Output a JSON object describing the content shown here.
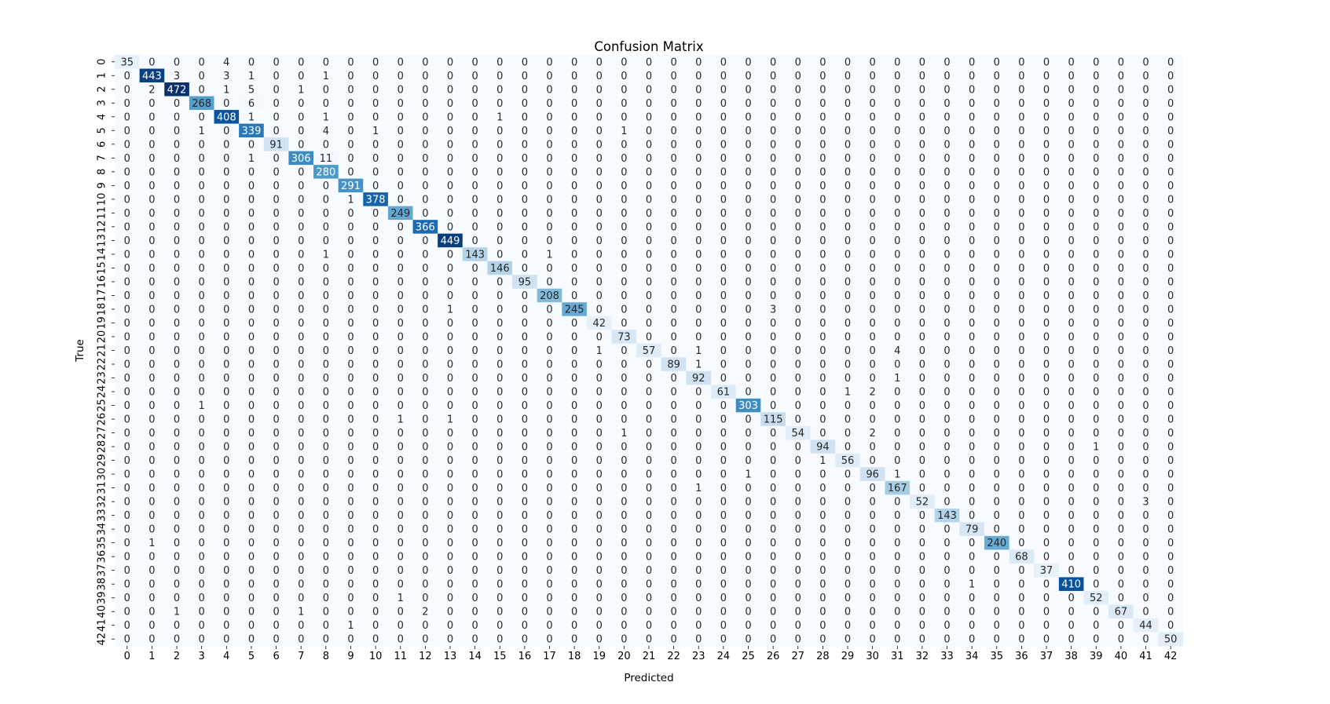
{
  "chart_data": {
    "type": "heatmap",
    "title": "Confusion Matrix",
    "xlabel": "Predicted",
    "ylabel": "True",
    "colormap": "Blues",
    "color_low": "#f7fbff",
    "color_high": "#08306b",
    "x_categories": [
      "0",
      "1",
      "2",
      "3",
      "4",
      "5",
      "6",
      "7",
      "8",
      "9",
      "10",
      "11",
      "12",
      "13",
      "14",
      "15",
      "16",
      "17",
      "18",
      "19",
      "20",
      "21",
      "22",
      "23",
      "24",
      "25",
      "26",
      "27",
      "28",
      "29",
      "30",
      "31",
      "32",
      "33",
      "34",
      "35",
      "36",
      "37",
      "38",
      "39",
      "40",
      "41",
      "42"
    ],
    "y_categories": [
      "0",
      "1",
      "2",
      "3",
      "4",
      "5",
      "6",
      "7",
      "8",
      "9",
      "10",
      "11",
      "12",
      "13",
      "14",
      "15",
      "16",
      "17",
      "18",
      "19",
      "20",
      "21",
      "22",
      "23",
      "24",
      "25",
      "26",
      "27",
      "28",
      "29",
      "30",
      "31",
      "32",
      "33",
      "34",
      "35",
      "36",
      "37",
      "38",
      "39",
      "40",
      "41",
      "42"
    ],
    "cells": [
      {
        "row": 0,
        "col": 0,
        "value": 35
      },
      {
        "row": 0,
        "col": 4,
        "value": 4
      },
      {
        "row": 1,
        "col": 1,
        "value": 443
      },
      {
        "row": 1,
        "col": 2,
        "value": 3
      },
      {
        "row": 1,
        "col": 4,
        "value": 3
      },
      {
        "row": 1,
        "col": 5,
        "value": 1
      },
      {
        "row": 1,
        "col": 8,
        "value": 1
      },
      {
        "row": 2,
        "col": 1,
        "value": 2
      },
      {
        "row": 2,
        "col": 2,
        "value": 472
      },
      {
        "row": 2,
        "col": 4,
        "value": 1
      },
      {
        "row": 2,
        "col": 5,
        "value": 5
      },
      {
        "row": 2,
        "col": 7,
        "value": 1
      },
      {
        "row": 3,
        "col": 3,
        "value": 268
      },
      {
        "row": 3,
        "col": 5,
        "value": 6
      },
      {
        "row": 4,
        "col": 4,
        "value": 408
      },
      {
        "row": 4,
        "col": 5,
        "value": 1
      },
      {
        "row": 4,
        "col": 8,
        "value": 1
      },
      {
        "row": 4,
        "col": 15,
        "value": 1
      },
      {
        "row": 5,
        "col": 3,
        "value": 1
      },
      {
        "row": 5,
        "col": 5,
        "value": 339
      },
      {
        "row": 5,
        "col": 8,
        "value": 4
      },
      {
        "row": 5,
        "col": 10,
        "value": 1
      },
      {
        "row": 5,
        "col": 20,
        "value": 1
      },
      {
        "row": 6,
        "col": 6,
        "value": 91
      },
      {
        "row": 7,
        "col": 5,
        "value": 1
      },
      {
        "row": 7,
        "col": 7,
        "value": 306
      },
      {
        "row": 7,
        "col": 8,
        "value": 11
      },
      {
        "row": 8,
        "col": 8,
        "value": 280
      },
      {
        "row": 9,
        "col": 9,
        "value": 291
      },
      {
        "row": 10,
        "col": 9,
        "value": 1
      },
      {
        "row": 10,
        "col": 10,
        "value": 378
      },
      {
        "row": 11,
        "col": 11,
        "value": 249
      },
      {
        "row": 12,
        "col": 12,
        "value": 366
      },
      {
        "row": 13,
        "col": 13,
        "value": 449
      },
      {
        "row": 14,
        "col": 8,
        "value": 1
      },
      {
        "row": 14,
        "col": 14,
        "value": 143
      },
      {
        "row": 14,
        "col": 17,
        "value": 1
      },
      {
        "row": 15,
        "col": 15,
        "value": 146
      },
      {
        "row": 16,
        "col": 16,
        "value": 95
      },
      {
        "row": 17,
        "col": 17,
        "value": 208
      },
      {
        "row": 18,
        "col": 13,
        "value": 1
      },
      {
        "row": 18,
        "col": 18,
        "value": 245
      },
      {
        "row": 18,
        "col": 26,
        "value": 3
      },
      {
        "row": 19,
        "col": 19,
        "value": 42
      },
      {
        "row": 20,
        "col": 20,
        "value": 73
      },
      {
        "row": 21,
        "col": 19,
        "value": 1
      },
      {
        "row": 21,
        "col": 21,
        "value": 57
      },
      {
        "row": 21,
        "col": 23,
        "value": 1
      },
      {
        "row": 21,
        "col": 31,
        "value": 4
      },
      {
        "row": 22,
        "col": 22,
        "value": 89
      },
      {
        "row": 22,
        "col": 23,
        "value": 1
      },
      {
        "row": 23,
        "col": 23,
        "value": 92
      },
      {
        "row": 23,
        "col": 31,
        "value": 1
      },
      {
        "row": 24,
        "col": 24,
        "value": 61
      },
      {
        "row": 24,
        "col": 29,
        "value": 1
      },
      {
        "row": 24,
        "col": 30,
        "value": 2
      },
      {
        "row": 25,
        "col": 3,
        "value": 1
      },
      {
        "row": 25,
        "col": 25,
        "value": 303
      },
      {
        "row": 26,
        "col": 11,
        "value": 1
      },
      {
        "row": 26,
        "col": 13,
        "value": 1
      },
      {
        "row": 26,
        "col": 26,
        "value": 115
      },
      {
        "row": 27,
        "col": 20,
        "value": 1
      },
      {
        "row": 27,
        "col": 27,
        "value": 54
      },
      {
        "row": 27,
        "col": 30,
        "value": 2
      },
      {
        "row": 28,
        "col": 28,
        "value": 94
      },
      {
        "row": 28,
        "col": 39,
        "value": 1
      },
      {
        "row": 29,
        "col": 28,
        "value": 1
      },
      {
        "row": 29,
        "col": 29,
        "value": 56
      },
      {
        "row": 30,
        "col": 25,
        "value": 1
      },
      {
        "row": 30,
        "col": 30,
        "value": 96
      },
      {
        "row": 30,
        "col": 31,
        "value": 1
      },
      {
        "row": 31,
        "col": 23,
        "value": 1
      },
      {
        "row": 31,
        "col": 31,
        "value": 167
      },
      {
        "row": 32,
        "col": 32,
        "value": 52
      },
      {
        "row": 32,
        "col": 41,
        "value": 3
      },
      {
        "row": 33,
        "col": 33,
        "value": 143
      },
      {
        "row": 34,
        "col": 34,
        "value": 79
      },
      {
        "row": 35,
        "col": 1,
        "value": 1
      },
      {
        "row": 35,
        "col": 35,
        "value": 240
      },
      {
        "row": 36,
        "col": 36,
        "value": 68
      },
      {
        "row": 37,
        "col": 37,
        "value": 37
      },
      {
        "row": 38,
        "col": 34,
        "value": 1
      },
      {
        "row": 38,
        "col": 38,
        "value": 410
      },
      {
        "row": 39,
        "col": 11,
        "value": 1
      },
      {
        "row": 39,
        "col": 39,
        "value": 52
      },
      {
        "row": 40,
        "col": 2,
        "value": 1
      },
      {
        "row": 40,
        "col": 7,
        "value": 1
      },
      {
        "row": 40,
        "col": 12,
        "value": 2
      },
      {
        "row": 40,
        "col": 40,
        "value": 67
      },
      {
        "row": 41,
        "col": 9,
        "value": 1
      },
      {
        "row": 41,
        "col": 41,
        "value": 44
      },
      {
        "row": 42,
        "col": 42,
        "value": 50
      }
    ],
    "default_value": 0,
    "grid": false,
    "legend": "none"
  }
}
